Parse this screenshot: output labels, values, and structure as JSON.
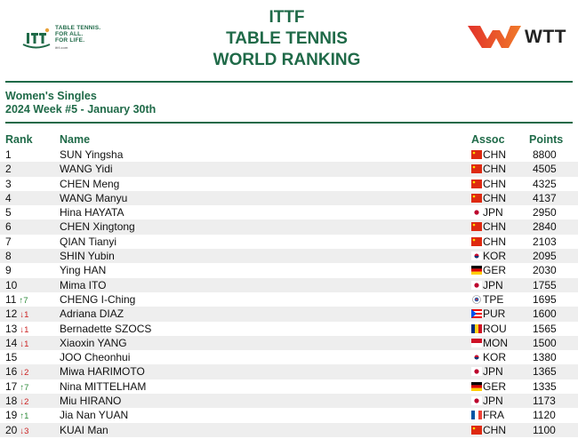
{
  "header": {
    "title_lines": [
      "ITTF",
      "TABLE TENNIS",
      "WORLD RANKING"
    ],
    "left_logo": {
      "tagline": [
        "TABLE TENNIS.",
        "FOR ALL.",
        "FOR LIFE."
      ],
      "url": "ittf.com"
    },
    "right_logo": {
      "text": "WTT"
    }
  },
  "subtitle": {
    "category": "Women's Singles",
    "week": "2024 Week #5 - January 30th"
  },
  "columns": {
    "rank": "Rank",
    "name": "Name",
    "assoc": "Assoc",
    "points": "Points"
  },
  "colors": {
    "brand_green": "#1f6a48",
    "up": "#2e8b3a",
    "down": "#cc2222",
    "row_alt": "#eeeeee"
  },
  "rows": [
    {
      "rank": "1",
      "move": "",
      "dir": "",
      "name": "SUN Yingsha",
      "assoc": "CHN",
      "points": "8800",
      "flag": "chn"
    },
    {
      "rank": "2",
      "move": "",
      "dir": "",
      "name": "WANG Yidi",
      "assoc": "CHN",
      "points": "4505",
      "flag": "chn"
    },
    {
      "rank": "3",
      "move": "",
      "dir": "",
      "name": "CHEN Meng",
      "assoc": "CHN",
      "points": "4325",
      "flag": "chn"
    },
    {
      "rank": "4",
      "move": "",
      "dir": "",
      "name": "WANG Manyu",
      "assoc": "CHN",
      "points": "4137",
      "flag": "chn"
    },
    {
      "rank": "5",
      "move": "",
      "dir": "",
      "name": "Hina HAYATA",
      "assoc": "JPN",
      "points": "2950",
      "flag": "jpn"
    },
    {
      "rank": "6",
      "move": "",
      "dir": "",
      "name": "CHEN Xingtong",
      "assoc": "CHN",
      "points": "2840",
      "flag": "chn"
    },
    {
      "rank": "7",
      "move": "",
      "dir": "",
      "name": "QIAN Tianyi",
      "assoc": "CHN",
      "points": "2103",
      "flag": "chn"
    },
    {
      "rank": "8",
      "move": "",
      "dir": "",
      "name": "SHIN Yubin",
      "assoc": "KOR",
      "points": "2095",
      "flag": "kor"
    },
    {
      "rank": "9",
      "move": "",
      "dir": "",
      "name": "Ying HAN",
      "assoc": "GER",
      "points": "2030",
      "flag": "ger"
    },
    {
      "rank": "10",
      "move": "",
      "dir": "",
      "name": "Mima ITO",
      "assoc": "JPN",
      "points": "1755",
      "flag": "jpn"
    },
    {
      "rank": "11",
      "move": "↑7",
      "dir": "up",
      "name": "CHENG I-Ching",
      "assoc": "TPE",
      "points": "1695",
      "flag": "tpe"
    },
    {
      "rank": "12",
      "move": "↓1",
      "dir": "down",
      "name": "Adriana DIAZ",
      "assoc": "PUR",
      "points": "1600",
      "flag": "pur"
    },
    {
      "rank": "13",
      "move": "↓1",
      "dir": "down",
      "name": "Bernadette SZOCS",
      "assoc": "ROU",
      "points": "1565",
      "flag": "rou"
    },
    {
      "rank": "14",
      "move": "↓1",
      "dir": "down",
      "name": "Xiaoxin YANG",
      "assoc": "MON",
      "points": "1500",
      "flag": "mon"
    },
    {
      "rank": "15",
      "move": "",
      "dir": "",
      "name": "JOO Cheonhui",
      "assoc": "KOR",
      "points": "1380",
      "flag": "kor"
    },
    {
      "rank": "16",
      "move": "↓2",
      "dir": "down",
      "name": "Miwa HARIMOTO",
      "assoc": "JPN",
      "points": "1365",
      "flag": "jpn"
    },
    {
      "rank": "17",
      "move": "↑7",
      "dir": "up",
      "name": "Nina MITTELHAM",
      "assoc": "GER",
      "points": "1335",
      "flag": "ger"
    },
    {
      "rank": "18",
      "move": "↓2",
      "dir": "down",
      "name": "Miu HIRANO",
      "assoc": "JPN",
      "points": "1173",
      "flag": "jpn"
    },
    {
      "rank": "19",
      "move": "↑1",
      "dir": "up",
      "name": "Jia Nan YUAN",
      "assoc": "FRA",
      "points": "1120",
      "flag": "fra"
    },
    {
      "rank": "20",
      "move": "↓3",
      "dir": "down",
      "name": "KUAI Man",
      "assoc": "CHN",
      "points": "1100",
      "flag": "chn"
    }
  ]
}
